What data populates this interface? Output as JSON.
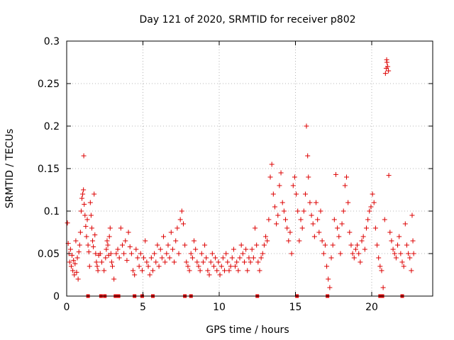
{
  "chart_data": {
    "type": "scatter",
    "title": "Day 121 of 2020, SRMTID for receiver p802",
    "xlabel": "GPS time / hours",
    "ylabel": "SRMTID / TECUs",
    "xlim": [
      0,
      24
    ],
    "ylim": [
      0,
      0.3
    ],
    "xticks": [
      0,
      5,
      10,
      15,
      20
    ],
    "xtick_labels": [
      "0",
      "5",
      "10",
      "15",
      "20"
    ],
    "yticks": [
      0,
      0.05,
      0.1,
      0.15,
      0.2,
      0.25,
      0.3
    ],
    "ytick_labels": [
      "0",
      "0.05",
      "0.1",
      "0.15",
      "0.2",
      "0.25",
      "0.3"
    ],
    "grid": true,
    "marker": "+",
    "color": "#dd0000",
    "series": [
      {
        "name": "SRMTID",
        "points": [
          [
            0.05,
            0.086
          ],
          [
            0.1,
            0.062
          ],
          [
            0.15,
            0.05
          ],
          [
            0.2,
            0.04
          ],
          [
            0.25,
            0.055
          ],
          [
            0.3,
            0.035
          ],
          [
            0.35,
            0.048
          ],
          [
            0.4,
            0.03
          ],
          [
            0.45,
            0.042
          ],
          [
            0.5,
            0.025
          ],
          [
            0.55,
            0.038
          ],
          [
            0.6,
            0.065
          ],
          [
            0.65,
            0.028
          ],
          [
            0.7,
            0.045
          ],
          [
            0.75,
            0.02
          ],
          [
            0.8,
            0.052
          ],
          [
            0.85,
            0.06
          ],
          [
            0.9,
            0.075
          ],
          [
            0.95,
            0.1
          ],
          [
            1.0,
            0.115
          ],
          [
            1.05,
            0.12
          ],
          [
            1.1,
            0.125
          ],
          [
            1.15,
            0.108
          ],
          [
            1.2,
            0.095
          ],
          [
            1.25,
            0.082
          ],
          [
            1.12,
            0.165
          ],
          [
            1.3,
            0.07
          ],
          [
            1.35,
            0.09
          ],
          [
            1.4,
            0.06
          ],
          [
            1.45,
            0.052
          ],
          [
            1.5,
            0.035
          ],
          [
            1.55,
            0.11
          ],
          [
            1.6,
            0.095
          ],
          [
            1.65,
            0.08
          ],
          [
            1.7,
            0.065
          ],
          [
            1.75,
            0.058
          ],
          [
            1.8,
            0.12
          ],
          [
            1.85,
            0.072
          ],
          [
            1.9,
            0.05
          ],
          [
            1.95,
            0.04
          ],
          [
            2.0,
            0.035
          ],
          [
            2.05,
            0.03
          ],
          [
            2.1,
            0.048
          ],
          [
            2.2,
            0.05
          ],
          [
            2.3,
            0.04
          ],
          [
            2.45,
            0.03
          ],
          [
            2.55,
            0.045
          ],
          [
            2.6,
            0.055
          ],
          [
            2.65,
            0.065
          ],
          [
            2.7,
            0.06
          ],
          [
            2.75,
            0.048
          ],
          [
            2.8,
            0.07
          ],
          [
            2.85,
            0.08
          ],
          [
            2.9,
            0.05
          ],
          [
            2.95,
            0.04
          ],
          [
            3.0,
            0.035
          ],
          [
            3.1,
            0.02
          ],
          [
            3.25,
            0.05
          ],
          [
            3.35,
            0.055
          ],
          [
            3.45,
            0.045
          ],
          [
            3.55,
            0.08
          ],
          [
            3.65,
            0.06
          ],
          [
            3.75,
            0.05
          ],
          [
            3.85,
            0.065
          ],
          [
            3.95,
            0.042
          ],
          [
            4.05,
            0.075
          ],
          [
            4.15,
            0.058
          ],
          [
            4.25,
            0.05
          ],
          [
            4.35,
            0.03
          ],
          [
            4.45,
            0.025
          ],
          [
            4.55,
            0.055
          ],
          [
            4.65,
            0.045
          ],
          [
            4.75,
            0.035
          ],
          [
            4.85,
            0.05
          ],
          [
            4.95,
            0.03
          ],
          [
            5.05,
            0.045
          ],
          [
            5.15,
            0.065
          ],
          [
            5.25,
            0.04
          ],
          [
            5.35,
            0.035
          ],
          [
            5.45,
            0.025
          ],
          [
            5.55,
            0.045
          ],
          [
            5.65,
            0.03
          ],
          [
            5.75,
            0.05
          ],
          [
            5.85,
            0.04
          ],
          [
            5.95,
            0.06
          ],
          [
            6.05,
            0.035
          ],
          [
            6.15,
            0.055
          ],
          [
            6.25,
            0.045
          ],
          [
            6.35,
            0.07
          ],
          [
            6.45,
            0.04
          ],
          [
            6.55,
            0.05
          ],
          [
            6.65,
            0.06
          ],
          [
            6.75,
            0.045
          ],
          [
            6.85,
            0.075
          ],
          [
            6.95,
            0.055
          ],
          [
            7.05,
            0.04
          ],
          [
            7.15,
            0.065
          ],
          [
            7.25,
            0.08
          ],
          [
            7.35,
            0.05
          ],
          [
            7.45,
            0.09
          ],
          [
            7.55,
            0.1
          ],
          [
            7.65,
            0.085
          ],
          [
            7.75,
            0.06
          ],
          [
            7.85,
            0.04
          ],
          [
            7.95,
            0.035
          ],
          [
            8.05,
            0.03
          ],
          [
            8.15,
            0.05
          ],
          [
            8.25,
            0.045
          ],
          [
            8.35,
            0.065
          ],
          [
            8.45,
            0.055
          ],
          [
            8.55,
            0.04
          ],
          [
            8.65,
            0.035
          ],
          [
            8.75,
            0.03
          ],
          [
            8.85,
            0.05
          ],
          [
            8.95,
            0.04
          ],
          [
            9.05,
            0.06
          ],
          [
            9.15,
            0.045
          ],
          [
            9.25,
            0.03
          ],
          [
            9.35,
            0.025
          ],
          [
            9.45,
            0.04
          ],
          [
            9.55,
            0.05
          ],
          [
            9.65,
            0.035
          ],
          [
            9.75,
            0.045
          ],
          [
            9.85,
            0.03
          ],
          [
            9.95,
            0.04
          ],
          [
            10.05,
            0.025
          ],
          [
            10.15,
            0.035
          ],
          [
            10.25,
            0.045
          ],
          [
            10.35,
            0.03
          ],
          [
            10.45,
            0.05
          ],
          [
            10.55,
            0.04
          ],
          [
            10.65,
            0.03
          ],
          [
            10.75,
            0.035
          ],
          [
            10.85,
            0.045
          ],
          [
            10.95,
            0.055
          ],
          [
            11.05,
            0.035
          ],
          [
            11.15,
            0.04
          ],
          [
            11.25,
            0.03
          ],
          [
            11.35,
            0.045
          ],
          [
            11.45,
            0.06
          ],
          [
            11.55,
            0.05
          ],
          [
            11.65,
            0.04
          ],
          [
            11.75,
            0.055
          ],
          [
            11.85,
            0.03
          ],
          [
            11.95,
            0.045
          ],
          [
            12.05,
            0.04
          ],
          [
            12.15,
            0.055
          ],
          [
            12.25,
            0.045
          ],
          [
            12.35,
            0.08
          ],
          [
            12.45,
            0.06
          ],
          [
            12.55,
            0.04
          ],
          [
            12.65,
            0.03
          ],
          [
            12.75,
            0.045
          ],
          [
            12.85,
            0.05
          ],
          [
            12.95,
            0.06
          ],
          [
            13.05,
            0.07
          ],
          [
            13.15,
            0.065
          ],
          [
            13.25,
            0.09
          ],
          [
            13.35,
            0.14
          ],
          [
            13.45,
            0.155
          ],
          [
            13.55,
            0.12
          ],
          [
            13.65,
            0.105
          ],
          [
            13.75,
            0.085
          ],
          [
            13.85,
            0.095
          ],
          [
            13.95,
            0.13
          ],
          [
            14.05,
            0.145
          ],
          [
            14.15,
            0.11
          ],
          [
            14.25,
            0.1
          ],
          [
            14.35,
            0.09
          ],
          [
            14.45,
            0.08
          ],
          [
            14.55,
            0.065
          ],
          [
            14.65,
            0.075
          ],
          [
            14.75,
            0.05
          ],
          [
            14.85,
            0.13
          ],
          [
            14.95,
            0.14
          ],
          [
            15.05,
            0.12
          ],
          [
            15.15,
            0.1
          ],
          [
            15.25,
            0.065
          ],
          [
            15.35,
            0.09
          ],
          [
            15.45,
            0.08
          ],
          [
            15.55,
            0.1
          ],
          [
            15.65,
            0.12
          ],
          [
            15.72,
            0.2
          ],
          [
            15.8,
            0.165
          ],
          [
            15.85,
            0.14
          ],
          [
            15.95,
            0.11
          ],
          [
            16.05,
            0.095
          ],
          [
            16.15,
            0.085
          ],
          [
            16.25,
            0.07
          ],
          [
            16.35,
            0.11
          ],
          [
            16.45,
            0.09
          ],
          [
            16.55,
            0.075
          ],
          [
            16.65,
            0.1
          ],
          [
            16.75,
            0.065
          ],
          [
            16.85,
            0.05
          ],
          [
            16.95,
            0.06
          ],
          [
            17.05,
            0.035
          ],
          [
            17.15,
            0.02
          ],
          [
            17.25,
            0.01
          ],
          [
            17.35,
            0.045
          ],
          [
            17.45,
            0.06
          ],
          [
            17.55,
            0.09
          ],
          [
            17.65,
            0.143
          ],
          [
            17.75,
            0.08
          ],
          [
            17.85,
            0.07
          ],
          [
            17.95,
            0.05
          ],
          [
            18.05,
            0.085
          ],
          [
            18.15,
            0.1
          ],
          [
            18.25,
            0.13
          ],
          [
            18.35,
            0.14
          ],
          [
            18.45,
            0.11
          ],
          [
            18.55,
            0.075
          ],
          [
            18.65,
            0.06
          ],
          [
            18.75,
            0.05
          ],
          [
            18.85,
            0.045
          ],
          [
            18.95,
            0.055
          ],
          [
            19.05,
            0.06
          ],
          [
            19.15,
            0.05
          ],
          [
            19.25,
            0.04
          ],
          [
            19.35,
            0.065
          ],
          [
            19.45,
            0.07
          ],
          [
            19.55,
            0.055
          ],
          [
            19.65,
            0.08
          ],
          [
            19.75,
            0.09
          ],
          [
            19.85,
            0.1
          ],
          [
            19.95,
            0.105
          ],
          [
            20.05,
            0.12
          ],
          [
            20.15,
            0.11
          ],
          [
            20.25,
            0.08
          ],
          [
            20.35,
            0.06
          ],
          [
            20.45,
            0.045
          ],
          [
            20.55,
            0.035
          ],
          [
            20.65,
            0.03
          ],
          [
            20.75,
            0.01
          ],
          [
            20.85,
            0.09
          ],
          [
            20.9,
            0.262
          ],
          [
            20.95,
            0.268
          ],
          [
            21.0,
            0.275
          ],
          [
            21.05,
            0.27
          ],
          [
            21.1,
            0.265
          ],
          [
            20.98,
            0.278
          ],
          [
            21.12,
            0.142
          ],
          [
            21.2,
            0.075
          ],
          [
            21.3,
            0.065
          ],
          [
            21.4,
            0.055
          ],
          [
            21.5,
            0.05
          ],
          [
            21.6,
            0.045
          ],
          [
            21.7,
            0.06
          ],
          [
            21.8,
            0.07
          ],
          [
            21.9,
            0.05
          ],
          [
            22.0,
            0.04
          ],
          [
            22.1,
            0.035
          ],
          [
            22.2,
            0.085
          ],
          [
            22.3,
            0.06
          ],
          [
            22.4,
            0.05
          ],
          [
            22.5,
            0.045
          ],
          [
            22.6,
            0.03
          ],
          [
            22.65,
            0.095
          ],
          [
            22.7,
            0.065
          ],
          [
            22.75,
            0.05
          ]
        ],
        "zero_points_x": [
          1.4,
          2.25,
          2.5,
          3.2,
          3.4,
          4.45,
          4.95,
          5.65,
          7.75,
          8.15,
          12.5,
          15.1,
          17.1,
          20.55,
          20.7,
          22.0
        ]
      }
    ]
  }
}
